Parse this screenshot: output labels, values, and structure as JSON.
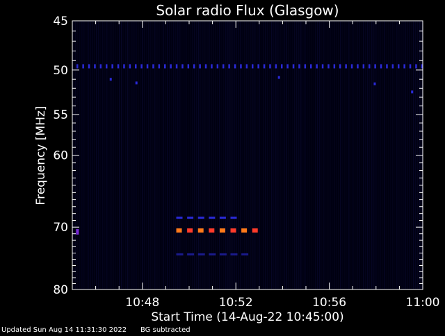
{
  "chart_data": {
    "type": "heatmap",
    "title": "Solar radio Flux (Glasgow)",
    "xlabel": "Start Time (14-Aug-22 10:45:00)",
    "ylabel": "Frequency [MHz]",
    "xlim_minutes": [
      0,
      15
    ],
    "ylim": [
      45,
      80
    ],
    "y_scale": "log",
    "x_ticks": [
      {
        "label": "10:48",
        "minute": 3
      },
      {
        "label": "10:52",
        "minute": 7
      },
      {
        "label": "10:56",
        "minute": 11
      },
      {
        "label": "11:00",
        "minute": 15
      }
    ],
    "y_ticks": [
      {
        "label": "45",
        "value": 45
      },
      {
        "label": "50",
        "value": 50
      },
      {
        "label": "55",
        "value": 55
      },
      {
        "label": "60",
        "value": 60
      },
      {
        "label": "70",
        "value": 70
      },
      {
        "label": "80",
        "value": 80
      }
    ],
    "background_color": "#000010",
    "colors": {
      "faint": "#1a1a8c",
      "medium": "#2a2ad8",
      "hot": "#ff7a1a",
      "hotter": "#ff3b2a",
      "violet": "#7a2ad8"
    },
    "features": [
      {
        "name": "steady-line-49-5",
        "freq": 49.6,
        "t_start": 0,
        "t_end": 15,
        "intensity": "medium"
      },
      {
        "name": "burst-70-5",
        "freq": 70.5,
        "t_start": 4.45,
        "t_end": 7.95,
        "intensity": "hot"
      },
      {
        "name": "burst-68-5",
        "freq": 68.6,
        "t_start": 4.45,
        "t_end": 7.0,
        "intensity": "medium"
      },
      {
        "name": "burst-74",
        "freq": 74.2,
        "t_start": 4.45,
        "t_end": 7.8,
        "intensity": "faint"
      },
      {
        "name": "spot-70-7",
        "freq": 70.7,
        "t_start": 0.1,
        "t_end": 0.25,
        "intensity": "violet"
      }
    ]
  },
  "footer": {
    "updated": "Updated Sun Aug 14 11:31:30 2022",
    "note": "BG subtracted"
  }
}
